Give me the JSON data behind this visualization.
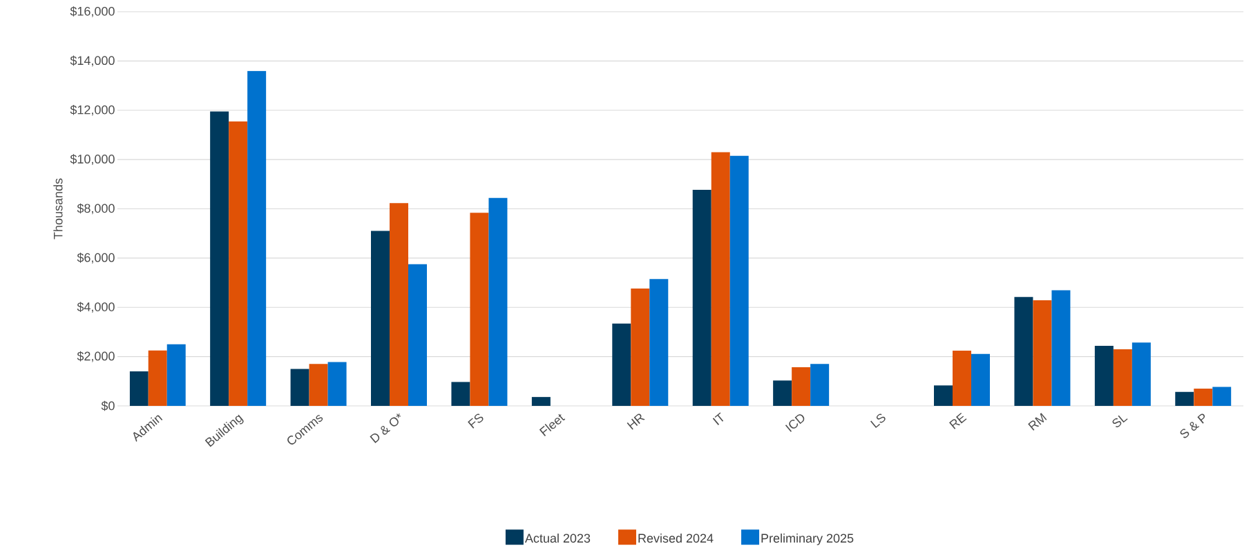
{
  "chart_data": {
    "type": "bar",
    "ylabel": "Thousands",
    "categories": [
      "Admin",
      "Building",
      "Comms",
      "D & O*",
      "FS",
      "Fleet",
      "HR",
      "IT",
      "ICD",
      "LS",
      "RE",
      "RM",
      "SL",
      "S & P"
    ],
    "series": [
      {
        "name": "Actual 2023",
        "color": "#003a5d",
        "values": [
          1400,
          11950,
          1500,
          7100,
          970,
          360,
          3340,
          8770,
          1030,
          0,
          830,
          4420,
          2440,
          570
        ]
      },
      {
        "name": "Revised 2024",
        "color": "#e05206",
        "values": [
          2250,
          11550,
          1700,
          8230,
          7840,
          0,
          4760,
          10300,
          1570,
          0,
          2240,
          4290,
          2300,
          700
        ]
      },
      {
        "name": "Preliminary 2025",
        "color": "#0072ce",
        "values": [
          2500,
          13600,
          1780,
          5750,
          8440,
          0,
          5150,
          10150,
          1700,
          0,
          2110,
          4690,
          2570,
          770
        ]
      }
    ],
    "ylim": [
      0,
      16000
    ],
    "yticks": [
      {
        "value": 0,
        "label": "$0"
      },
      {
        "value": 2000,
        "label": "$2,000"
      },
      {
        "value": 4000,
        "label": "$4,000"
      },
      {
        "value": 6000,
        "label": "$6,000"
      },
      {
        "value": 8000,
        "label": "$8,000"
      },
      {
        "value": 10000,
        "label": "$10,000"
      },
      {
        "value": 12000,
        "label": "$12,000"
      },
      {
        "value": 14000,
        "label": "$14,000"
      },
      {
        "value": 16000,
        "label": "$16,000"
      }
    ],
    "grid": "y",
    "legend": "bottom"
  }
}
